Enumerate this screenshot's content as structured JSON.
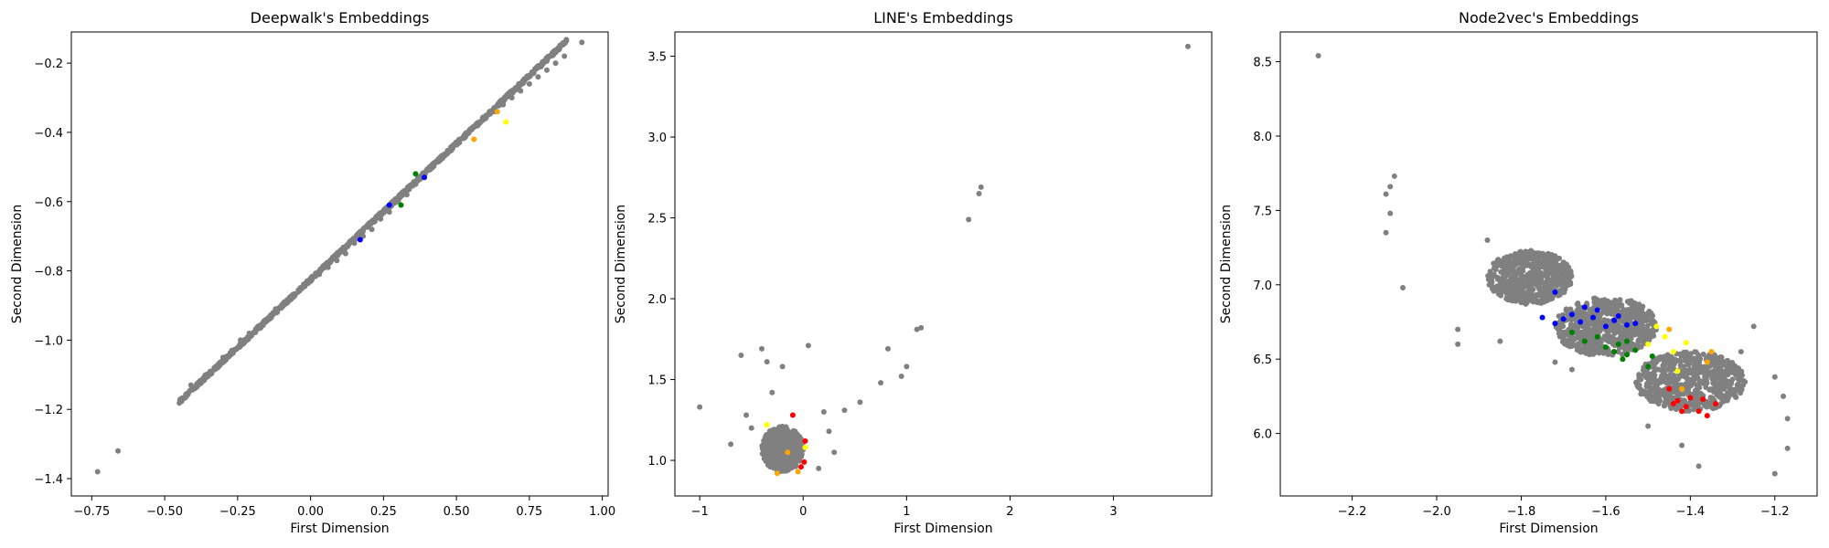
{
  "chart_data": [
    {
      "type": "scatter",
      "title": "Deepwalk's Embeddings",
      "xlabel": "First Dimension",
      "ylabel": "Second Dimension",
      "xlim": [
        -0.82,
        1.02
      ],
      "ylim": [
        -1.45,
        -0.11
      ],
      "xticks": [
        -0.75,
        -0.5,
        -0.25,
        0.0,
        0.25,
        0.5,
        0.75,
        1.0
      ],
      "xticklabels": [
        "−0.75",
        "−0.50",
        "−0.25",
        "0.00",
        "0.25",
        "0.50",
        "0.75",
        "1.00"
      ],
      "yticks": [
        -1.4,
        -1.2,
        -1.0,
        -0.8,
        -0.6,
        -0.4,
        -0.2
      ],
      "yticklabels": [
        "−1.4",
        "−1.2",
        "−1.0",
        "−0.8",
        "−0.6",
        "−0.4",
        "−0.2"
      ],
      "grid": false,
      "point_color": "#808080",
      "series": [
        {
          "color": "#808080",
          "points": [
            [
              -0.73,
              -1.38
            ],
            [
              -0.66,
              -1.32
            ],
            [
              -0.41,
              -1.13
            ],
            [
              -0.38,
              -1.12
            ],
            [
              -0.36,
              -1.1
            ],
            [
              -0.33,
              -1.08
            ],
            [
              -0.3,
              -1.05
            ],
            [
              -0.27,
              -1.03
            ],
            [
              -0.24,
              -1.0
            ],
            [
              -0.21,
              -0.98
            ],
            [
              -0.18,
              -0.96
            ],
            [
              -0.15,
              -0.94
            ],
            [
              -0.12,
              -0.91
            ],
            [
              -0.09,
              -0.89
            ],
            [
              -0.06,
              -0.87
            ],
            [
              -0.03,
              -0.85
            ],
            [
              0.0,
              -0.83
            ],
            [
              0.03,
              -0.81
            ],
            [
              0.06,
              -0.79
            ],
            [
              0.09,
              -0.77
            ],
            [
              0.12,
              -0.75
            ],
            [
              0.15,
              -0.72
            ],
            [
              0.18,
              -0.7
            ],
            [
              0.21,
              -0.68
            ],
            [
              0.24,
              -0.65
            ],
            [
              0.27,
              -0.63
            ],
            [
              0.3,
              -0.6
            ],
            [
              0.33,
              -0.58
            ],
            [
              0.36,
              -0.55
            ],
            [
              0.39,
              -0.52
            ],
            [
              0.42,
              -0.49
            ],
            [
              0.45,
              -0.47
            ],
            [
              0.48,
              -0.45
            ],
            [
              0.51,
              -0.43
            ],
            [
              0.54,
              -0.4
            ],
            [
              0.57,
              -0.38
            ],
            [
              0.6,
              -0.36
            ],
            [
              0.63,
              -0.34
            ],
            [
              0.66,
              -0.32
            ],
            [
              0.69,
              -0.3
            ],
            [
              0.72,
              -0.28
            ],
            [
              0.75,
              -0.26
            ],
            [
              0.78,
              -0.24
            ],
            [
              0.81,
              -0.22
            ],
            [
              0.84,
              -0.2
            ],
            [
              0.87,
              -0.18
            ],
            [
              0.93,
              -0.14
            ]
          ]
        },
        {
          "color": "#0000ff",
          "points": [
            [
              0.17,
              -0.71
            ],
            [
              0.27,
              -0.61
            ],
            [
              0.39,
              -0.53
            ]
          ]
        },
        {
          "color": "#008000",
          "points": [
            [
              0.31,
              -0.61
            ],
            [
              0.36,
              -0.52
            ]
          ]
        },
        {
          "color": "#ffa500",
          "points": [
            [
              0.64,
              -0.34
            ],
            [
              0.56,
              -0.42
            ]
          ]
        },
        {
          "color": "#ffff00",
          "points": [
            [
              0.67,
              -0.37
            ]
          ]
        }
      ]
    },
    {
      "type": "scatter",
      "title": "LINE's Embeddings",
      "xlabel": "First Dimension",
      "ylabel": "Second Dimension",
      "xlim": [
        -1.24,
        3.95
      ],
      "ylim": [
        0.78,
        3.65
      ],
      "xticks": [
        -1,
        0,
        1,
        2,
        3
      ],
      "xticklabels": [
        "−1",
        "0",
        "1",
        "2",
        "3"
      ],
      "yticks": [
        1.0,
        1.5,
        2.0,
        2.5,
        3.0,
        3.5
      ],
      "yticklabels": [
        "1.0",
        "1.5",
        "2.0",
        "2.5",
        "3.0",
        "3.5"
      ],
      "grid": false,
      "point_color": "#808080",
      "series": [
        {
          "color": "#808080",
          "points": [
            [
              -1.0,
              1.33
            ],
            [
              -0.6,
              1.65
            ],
            [
              -0.4,
              1.69
            ],
            [
              -0.35,
              1.61
            ],
            [
              -0.2,
              1.58
            ],
            [
              0.05,
              1.71
            ],
            [
              0.4,
              1.31
            ],
            [
              0.55,
              1.36
            ],
            [
              0.75,
              1.48
            ],
            [
              0.82,
              1.69
            ],
            [
              0.95,
              1.52
            ],
            [
              1.0,
              1.58
            ],
            [
              1.1,
              1.81
            ],
            [
              1.14,
              1.82
            ],
            [
              1.6,
              2.49
            ],
            [
              1.7,
              2.65
            ],
            [
              1.72,
              2.69
            ],
            [
              3.72,
              3.56
            ],
            [
              -0.55,
              1.28
            ],
            [
              -0.5,
              1.2
            ],
            [
              -0.3,
              1.42
            ],
            [
              0.2,
              1.3
            ],
            [
              0.25,
              1.18
            ],
            [
              0.3,
              1.05
            ],
            [
              -0.7,
              1.1
            ],
            [
              0.15,
              0.95
            ]
          ]
        },
        {
          "color": "#ff0000",
          "points": [
            [
              -0.1,
              1.28
            ],
            [
              0.02,
              1.12
            ],
            [
              0.01,
              0.99
            ],
            [
              -0.02,
              0.96
            ]
          ]
        },
        {
          "color": "#ffff00",
          "points": [
            [
              -0.35,
              1.22
            ],
            [
              0.02,
              1.08
            ]
          ]
        },
        {
          "color": "#ffa500",
          "points": [
            [
              -0.15,
              1.05
            ],
            [
              -0.25,
              0.92
            ],
            [
              -0.05,
              0.93
            ]
          ]
        }
      ],
      "clusters": [
        {
          "color": "#808080",
          "cx": -0.2,
          "cy": 1.07,
          "rx": 0.2,
          "ry": 0.14
        }
      ]
    },
    {
      "type": "scatter",
      "title": "Node2vec's Embeddings",
      "xlabel": "First Dimension",
      "ylabel": "Second Dimension",
      "xlim": [
        -2.37,
        -1.1
      ],
      "ylim": [
        5.58,
        8.7
      ],
      "xticks": [
        -2.2,
        -2.0,
        -1.8,
        -1.6,
        -1.4,
        -1.2
      ],
      "xticklabels": [
        "−2.2",
        "−2.0",
        "−1.8",
        "−1.6",
        "−1.4",
        "−1.2"
      ],
      "yticks": [
        6.0,
        6.5,
        7.0,
        7.5,
        8.0,
        8.5
      ],
      "yticklabels": [
        "6.0",
        "6.5",
        "7.0",
        "7.5",
        "8.0",
        "8.5"
      ],
      "grid": false,
      "point_color": "#808080",
      "series": [
        {
          "color": "#808080",
          "points": [
            [
              -2.28,
              8.54
            ],
            [
              -2.1,
              7.73
            ],
            [
              -2.11,
              7.66
            ],
            [
              -2.12,
              7.61
            ],
            [
              -2.11,
              7.48
            ],
            [
              -2.12,
              7.35
            ],
            [
              -2.08,
              6.98
            ],
            [
              -1.95,
              6.7
            ],
            [
              -1.95,
              6.6
            ],
            [
              -1.85,
              6.62
            ],
            [
              -1.72,
              6.48
            ],
            [
              -1.68,
              6.43
            ],
            [
              -1.25,
              6.72
            ],
            [
              -1.28,
              6.55
            ],
            [
              -1.2,
              6.38
            ],
            [
              -1.18,
              6.25
            ],
            [
              -1.17,
              6.1
            ],
            [
              -1.17,
              5.9
            ],
            [
              -1.2,
              5.73
            ],
            [
              -1.38,
              5.78
            ],
            [
              -1.42,
              5.92
            ],
            [
              -1.5,
              6.05
            ],
            [
              -1.88,
              7.3
            ],
            [
              -1.78,
              7.2
            ],
            [
              -1.62,
              6.9
            ],
            [
              -1.55,
              6.8
            ]
          ]
        },
        {
          "color": "#0000ff",
          "points": [
            [
              -1.72,
              6.95
            ],
            [
              -1.75,
              6.78
            ],
            [
              -1.72,
              6.74
            ],
            [
              -1.7,
              6.77
            ],
            [
              -1.68,
              6.8
            ],
            [
              -1.66,
              6.75
            ],
            [
              -1.65,
              6.85
            ],
            [
              -1.63,
              6.78
            ],
            [
              -1.62,
              6.83
            ],
            [
              -1.6,
              6.72
            ],
            [
              -1.58,
              6.76
            ],
            [
              -1.57,
              6.79
            ],
            [
              -1.55,
              6.73
            ],
            [
              -1.53,
              6.74
            ]
          ]
        },
        {
          "color": "#008000",
          "points": [
            [
              -1.68,
              6.68
            ],
            [
              -1.65,
              6.62
            ],
            [
              -1.62,
              6.65
            ],
            [
              -1.6,
              6.58
            ],
            [
              -1.58,
              6.55
            ],
            [
              -1.57,
              6.6
            ],
            [
              -1.56,
              6.5
            ],
            [
              -1.55,
              6.62
            ],
            [
              -1.53,
              6.56
            ],
            [
              -1.5,
              6.45
            ],
            [
              -1.49,
              6.52
            ],
            [
              -1.55,
              6.53
            ]
          ]
        },
        {
          "color": "#ffff00",
          "points": [
            [
              -1.48,
              6.72
            ],
            [
              -1.46,
              6.65
            ],
            [
              -1.44,
              6.55
            ],
            [
              -1.43,
              6.42
            ],
            [
              -1.41,
              6.61
            ],
            [
              -1.5,
              6.6
            ]
          ]
        },
        {
          "color": "#ffa500",
          "points": [
            [
              -1.45,
              6.7
            ],
            [
              -1.36,
              6.48
            ],
            [
              -1.35,
              6.55
            ],
            [
              -1.42,
              6.3
            ]
          ]
        },
        {
          "color": "#ff0000",
          "points": [
            [
              -1.45,
              6.3
            ],
            [
              -1.44,
              6.2
            ],
            [
              -1.43,
              6.22
            ],
            [
              -1.41,
              6.18
            ],
            [
              -1.4,
              6.24
            ],
            [
              -1.38,
              6.15
            ],
            [
              -1.37,
              6.23
            ],
            [
              -1.36,
              6.12
            ],
            [
              -1.42,
              6.15
            ],
            [
              -1.34,
              6.2
            ]
          ]
        }
      ],
      "clusters": [
        {
          "color": "#808080",
          "cx": -1.78,
          "cy": 7.05,
          "rx": 0.1,
          "ry": 0.18
        },
        {
          "color": "#808080",
          "cx": -1.4,
          "cy": 6.35,
          "rx": 0.13,
          "ry": 0.2
        },
        {
          "color": "#808080",
          "cx": -1.6,
          "cy": 6.72,
          "rx": 0.12,
          "ry": 0.2
        }
      ]
    }
  ]
}
